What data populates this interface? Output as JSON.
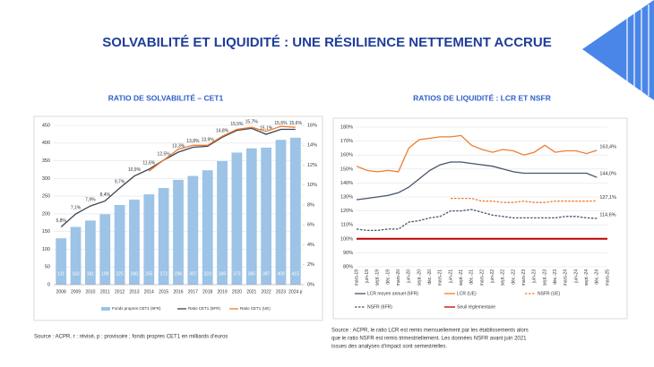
{
  "title": "SOLVABILITÉ ET LIQUIDITÉ : UNE RÉSILIENCE NETTEMENT ACCRUE",
  "chart_data": [
    {
      "type": "bar",
      "title": "RATIO DE SOLVABILITÉ – CET1",
      "categories": [
        "2008",
        "2009",
        "2010",
        "2011",
        "2012",
        "2013",
        "2014",
        "2015",
        "2016",
        "2017",
        "2018",
        "2019",
        "2020",
        "2021",
        "2022",
        "2023",
        "2024 p"
      ],
      "ylim": [
        0,
        450
      ],
      "yticks": [
        0,
        50,
        100,
        150,
        200,
        250,
        300,
        350,
        400,
        450
      ],
      "y2lim": [
        0,
        16
      ],
      "y2ticks": [
        {
          "value": 0,
          "label": "0%"
        },
        {
          "value": 2,
          "label": "2%"
        },
        {
          "value": 4,
          "label": "4%"
        },
        {
          "value": 6,
          "label": "6%"
        },
        {
          "value": 8,
          "label": "8%"
        },
        {
          "value": 10,
          "label": "10%"
        },
        {
          "value": 12,
          "label": "12%"
        },
        {
          "value": 14,
          "label": "14%"
        },
        {
          "value": 16,
          "label": "16%"
        }
      ],
      "grid": true,
      "series": [
        {
          "name": "Fonds propres CET1 (6FR)",
          "kind": "bar",
          "color": "#9dc3e6",
          "values": [
            131,
            163,
            181,
            199,
            225,
            240,
            255,
            273,
            296,
            307,
            323,
            349,
            373,
            385,
            387,
            409,
            415
          ]
        },
        {
          "name": "Ratio CET1 (6FR)",
          "kind": "line",
          "axis": "y2",
          "color": "#3b4453",
          "values": [
            5.8,
            7.1,
            7.9,
            8.4,
            9.7,
            10.9,
            11.6,
            12.5,
            13.3,
            13.8,
            13.9,
            14.8,
            15.5,
            15.7,
            15.1,
            15.6,
            15.6
          ],
          "value_labels": [
            "5,8%",
            "7,1%",
            "7,9%",
            "8,4%",
            "9,7%",
            "10,9%",
            "11,6%",
            "12,5%",
            "13,3%",
            "13,8%",
            "13,9%",
            "14,8%",
            "15,5%",
            "15,7%",
            "15,1%",
            "15,6%",
            "15,6%"
          ]
        },
        {
          "name": "Ratio CET1 (UE)",
          "kind": "line",
          "axis": "y2",
          "color": "#ed7d31",
          "values": [
            null,
            null,
            null,
            null,
            null,
            null,
            11.4,
            12.5,
            13.6,
            14.0,
            14.0,
            14.9,
            15.6,
            15.8,
            15.4,
            15.9,
            15.8
          ]
        }
      ]
    },
    {
      "type": "line",
      "title": "RATIOS DE LIQUIDITÉ : LCR ET NSFR",
      "categories": [
        "mars-19",
        "juin-19",
        "sept.-19",
        "déc.-19",
        "mars-20",
        "juin-20",
        "sept.-20",
        "déc.-20",
        "mars-21",
        "juin-21",
        "sept.-21",
        "déc.-21",
        "mars-22",
        "juin-22",
        "sept.-22",
        "déc.-22",
        "mars-23",
        "juin-23",
        "sept.-23",
        "déc.-23",
        "mars-24",
        "juin-24",
        "sept.-24",
        "déc.-24",
        "mars-25"
      ],
      "ylim": [
        80,
        180
      ],
      "yticks": [
        {
          "value": 80,
          "label": "80%"
        },
        {
          "value": 90,
          "label": "90%"
        },
        {
          "value": 100,
          "label": "100%"
        },
        {
          "value": 110,
          "label": "110%"
        },
        {
          "value": 120,
          "label": "120%"
        },
        {
          "value": 130,
          "label": "130%"
        },
        {
          "value": 140,
          "label": "140%"
        },
        {
          "value": 150,
          "label": "150%"
        },
        {
          "value": 160,
          "label": "160%"
        },
        {
          "value": 170,
          "label": "170%"
        },
        {
          "value": 180,
          "label": "180%"
        }
      ],
      "grid": true,
      "series": [
        {
          "name": "LCR moyen annuel (6FR)",
          "color": "#44546a",
          "dash": false,
          "values": [
            128,
            129,
            130,
            131,
            133,
            137,
            143,
            149,
            153,
            155,
            155,
            154,
            153,
            152,
            150,
            148,
            147,
            147,
            147,
            147,
            147,
            147,
            147,
            144.0,
            null
          ],
          "value_labels": [
            null,
            null,
            null,
            null,
            null,
            null,
            null,
            null,
            null,
            null,
            null,
            null,
            null,
            null,
            null,
            null,
            null,
            null,
            null,
            null,
            null,
            null,
            null,
            "144,0%",
            null
          ]
        },
        {
          "name": "LCR (UE)",
          "color": "#ed7d31",
          "dash": false,
          "values": [
            152,
            149,
            148,
            149,
            148,
            165,
            171,
            172,
            173,
            173,
            174,
            167,
            164,
            162,
            164,
            163,
            160,
            162,
            167,
            162,
            163,
            163,
            161,
            163.4,
            null
          ],
          "value_labels": [
            null,
            null,
            null,
            null,
            null,
            null,
            null,
            null,
            null,
            null,
            null,
            null,
            null,
            null,
            null,
            null,
            null,
            null,
            null,
            null,
            null,
            null,
            null,
            "163,4%",
            null
          ]
        },
        {
          "name": "NSFR (UE)",
          "color": "#ed7d31",
          "dash": true,
          "values": [
            null,
            null,
            null,
            null,
            null,
            null,
            null,
            null,
            null,
            129,
            129,
            129,
            127,
            127,
            126,
            126,
            127,
            126,
            126,
            127,
            127,
            127,
            127,
            127.1,
            null
          ],
          "value_labels": [
            null,
            null,
            null,
            null,
            null,
            null,
            null,
            null,
            null,
            null,
            null,
            null,
            null,
            null,
            null,
            null,
            null,
            null,
            null,
            null,
            null,
            null,
            null,
            "127,1%",
            null
          ]
        },
        {
          "name": "NSFR (6FR)",
          "color": "#44546a",
          "dash": true,
          "values": [
            107,
            106,
            106,
            107,
            107,
            112,
            113,
            115,
            116,
            120,
            120,
            121,
            119,
            117,
            116,
            115,
            115,
            115,
            115,
            115,
            116,
            116,
            115,
            114.6,
            null
          ],
          "value_labels": [
            null,
            null,
            null,
            null,
            null,
            null,
            null,
            null,
            null,
            null,
            null,
            null,
            null,
            null,
            null,
            null,
            null,
            null,
            null,
            null,
            null,
            null,
            null,
            "114,6%",
            null
          ]
        },
        {
          "name": "Seuil réglementaire",
          "color": "#c00000",
          "dash": false,
          "values": [
            100,
            100,
            100,
            100,
            100,
            100,
            100,
            100,
            100,
            100,
            100,
            100,
            100,
            100,
            100,
            100,
            100,
            100,
            100,
            100,
            100,
            100,
            100,
            100,
            100
          ]
        }
      ]
    }
  ],
  "sources": [
    "Source : ACPR. r : révisé, p : provisoire ; fonds propres CET1 en milliards d’euros",
    [
      "Source : ACPR, le ratio LCR est remis mensuellement par les établissements alors",
      "que le ratio NSFR est remis trimestriellement. Les données NSFR avant juin 2021",
      "issues des analyses d’impact sont semestrielles."
    ]
  ]
}
